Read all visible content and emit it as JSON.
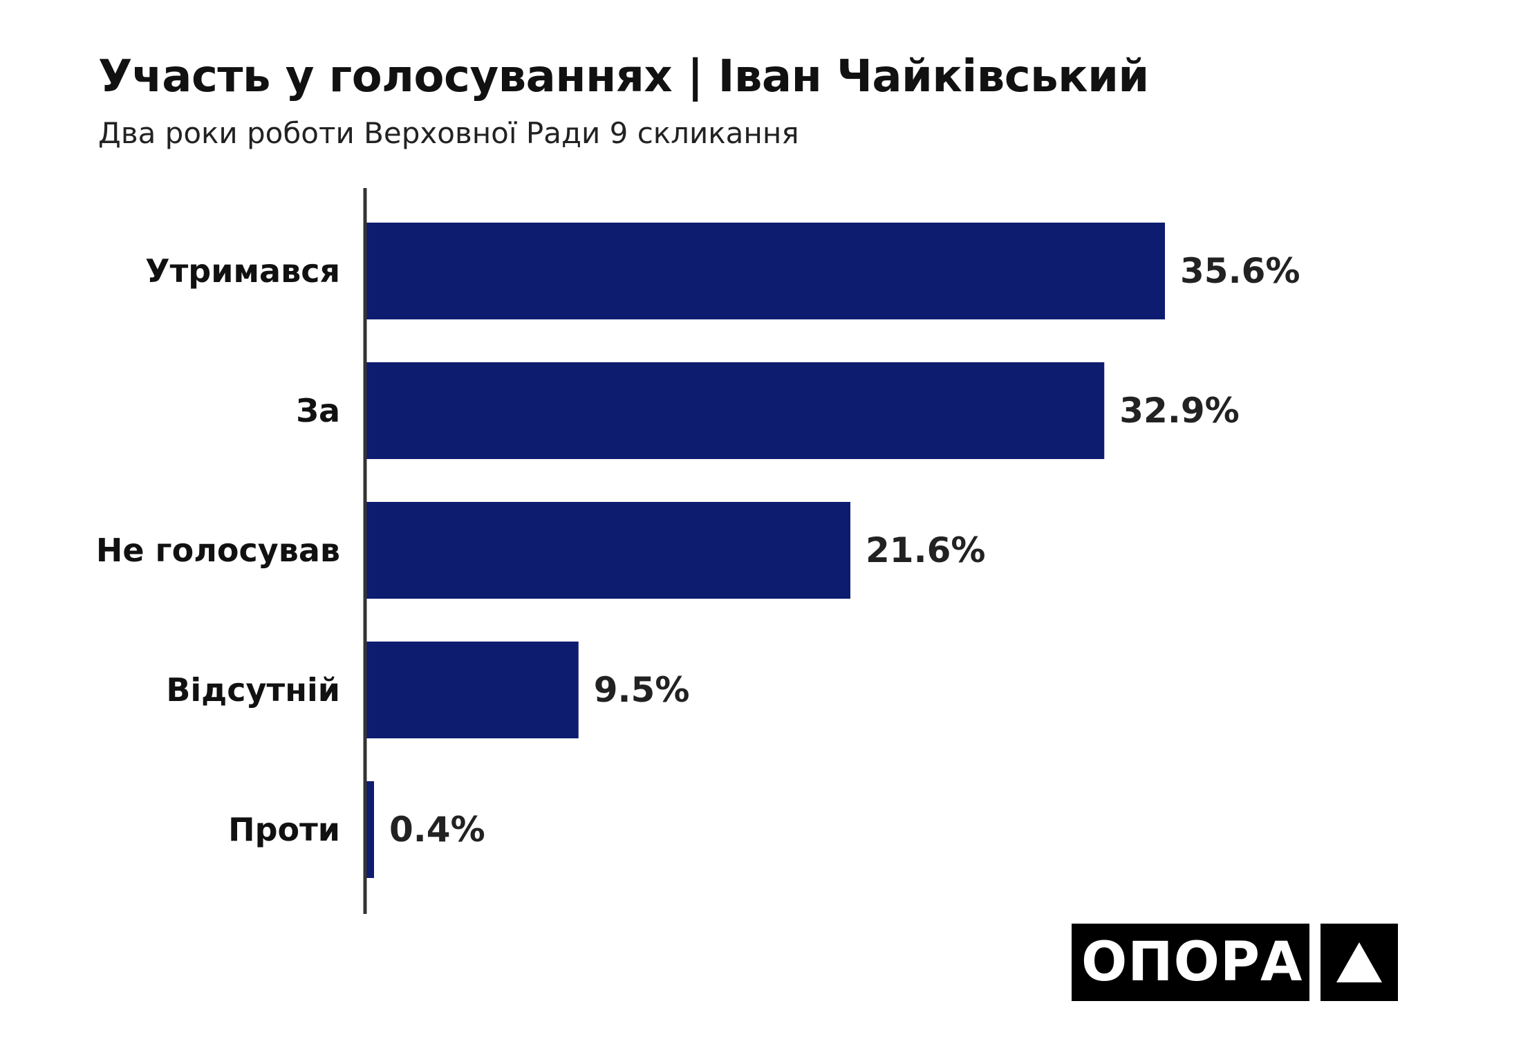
{
  "header": {
    "title": "Участь у голосуваннях | Іван Чайківський",
    "subtitle": "Два роки роботи Верховної Ради 9 скликання"
  },
  "colors": {
    "bar": "#0e1c70",
    "axis": "#333333",
    "background": "#ffffff"
  },
  "logo": {
    "text": "ОПОРА",
    "icon": "triangle-icon"
  },
  "chart_data": {
    "type": "bar",
    "orientation": "horizontal",
    "categories": [
      "Утримався",
      "За",
      "Не голосував",
      "Відсутній",
      "Проти"
    ],
    "values": [
      35.6,
      32.9,
      21.6,
      9.5,
      0.4
    ],
    "value_labels": [
      "35.6%",
      "32.9%",
      "21.6%",
      "9.5%",
      "0.4%"
    ],
    "title": "Участь у голосуваннях | Іван Чайківський",
    "subtitle": "Два роки роботи Верховної Ради 9 скликання",
    "xlabel": "",
    "ylabel": "",
    "xlim": [
      0,
      35.6
    ],
    "grid": false,
    "legend": "none"
  }
}
